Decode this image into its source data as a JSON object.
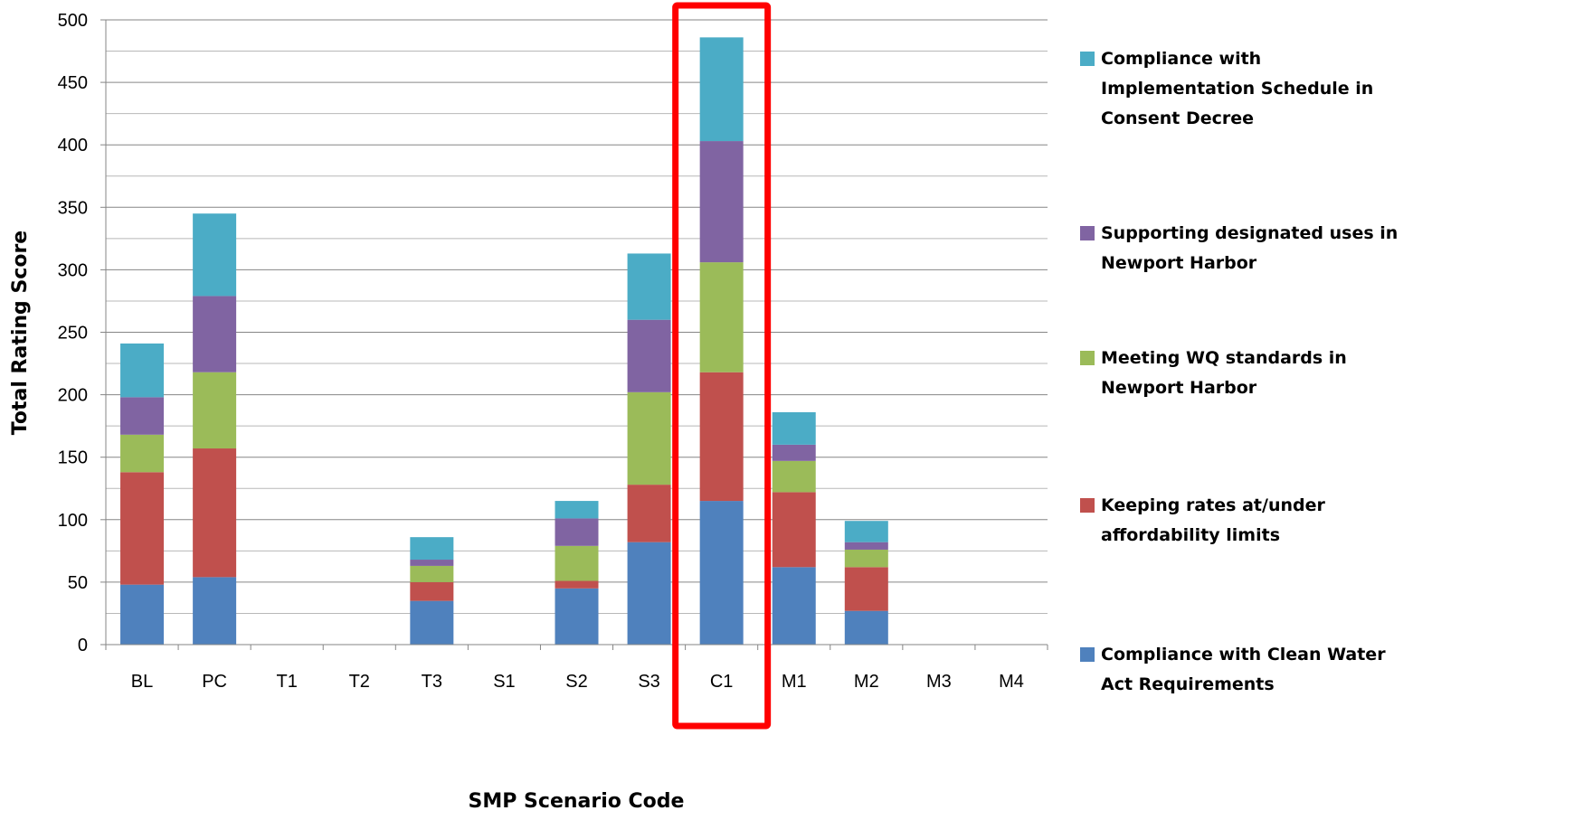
{
  "chart_data": {
    "type": "bar",
    "stacked": true,
    "title": "",
    "xlabel": "SMP Scenario Code",
    "ylabel": "Total Rating Score",
    "ylim": [
      0,
      500
    ],
    "y_major_step": 50,
    "y_minor_step": 25,
    "grid": true,
    "legend_position": "right",
    "highlight": {
      "category": "C1",
      "color": "#FF0000"
    },
    "categories": [
      "BL",
      "PC",
      "T1",
      "T2",
      "T3",
      "S1",
      "S2",
      "S3",
      "C1",
      "M1",
      "M2",
      "M3",
      "M4"
    ],
    "series": [
      {
        "name": "Compliance with Clean Water Act Requirements",
        "color": "#4F81BD",
        "values": [
          48,
          54,
          0,
          0,
          35,
          0,
          45,
          82,
          115,
          62,
          27,
          0,
          0
        ]
      },
      {
        "name": "Keeping rates at/under affordability limits",
        "color": "#C0504D",
        "values": [
          90,
          103,
          0,
          0,
          15,
          0,
          6,
          46,
          103,
          60,
          35,
          0,
          0
        ]
      },
      {
        "name": "Meeting WQ standards in Newport Harbor",
        "color": "#9BBB59",
        "values": [
          30,
          61,
          0,
          0,
          13,
          0,
          28,
          74,
          88,
          25,
          14,
          0,
          0
        ]
      },
      {
        "name": "Supporting designated uses in Newport Harbor",
        "color": "#8064A2",
        "values": [
          30,
          61,
          0,
          0,
          5,
          0,
          22,
          58,
          97,
          13,
          6,
          0,
          0
        ]
      },
      {
        "name": "Compliance with Implementation Schedule in Consent Decree",
        "color": "#4BACC6",
        "values": [
          43,
          66,
          0,
          0,
          18,
          0,
          14,
          53,
          83,
          26,
          17,
          0,
          0
        ]
      }
    ],
    "legend": [
      {
        "lines": [
          "Compliance with",
          "Implementation Schedule in",
          "Consent Decree"
        ],
        "color": "#4BACC6"
      },
      {
        "lines": [
          "Supporting designated uses in",
          "Newport Harbor"
        ],
        "color": "#8064A2"
      },
      {
        "lines": [
          "Meeting WQ standards in",
          "Newport Harbor"
        ],
        "color": "#9BBB59"
      },
      {
        "lines": [
          "Keeping rates at/under",
          "affordability limits"
        ],
        "color": "#C0504D"
      },
      {
        "lines": [
          "Compliance with Clean Water",
          "Act Requirements"
        ],
        "color": "#4F81BD"
      }
    ]
  }
}
